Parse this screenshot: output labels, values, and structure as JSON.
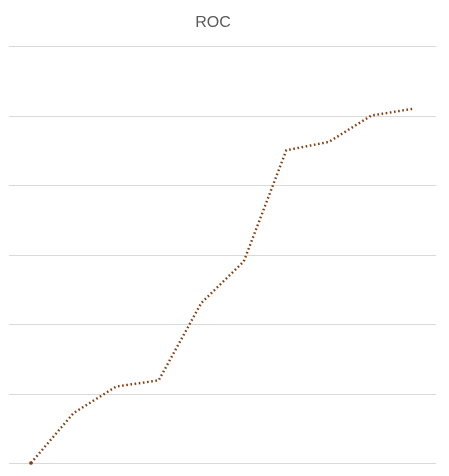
{
  "chart_data": {
    "type": "line",
    "title": "ROC",
    "xlabel": "",
    "ylabel": "",
    "x": [
      0,
      1,
      2,
      3,
      4,
      5,
      6,
      7,
      8,
      9
    ],
    "ylim": [
      0,
      6
    ],
    "grid": true,
    "gridline_count": 7,
    "series": [
      {
        "values": [
          0,
          0.72,
          1.1,
          1.19,
          2.3,
          2.9,
          4.5,
          4.62,
          5.0,
          5.1
        ],
        "color": "#843c0c"
      }
    ]
  }
}
